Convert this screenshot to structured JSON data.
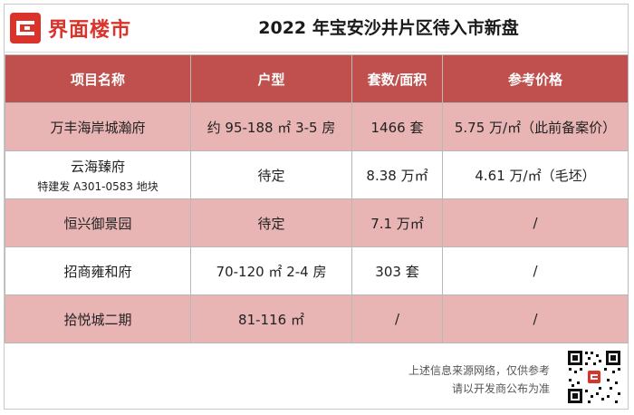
{
  "header": {
    "brand": "界面楼市",
    "title": "2022 年宝安沙井片区待入市新盘"
  },
  "table": {
    "columns": [
      "项目名称",
      "户型",
      "套数/面积",
      "参考价格"
    ],
    "rows": [
      {
        "name": "万丰海岸城瀚府",
        "name_sub": "",
        "unit": "约 95-188 ㎡ 3-5 房",
        "count": "1466 套",
        "price": "5.75 万/㎡（此前备案价）"
      },
      {
        "name": "云海臻府",
        "name_sub": "特建发 A301-0583 地块",
        "unit": "待定",
        "count": "8.38 万㎡",
        "price": "4.61 万/㎡（毛坯）"
      },
      {
        "name": "恒兴御景园",
        "name_sub": "",
        "unit": "待定",
        "count": "7.1 万㎡",
        "price": "/"
      },
      {
        "name": "招商雍和府",
        "name_sub": "",
        "unit": "70-120 ㎡ 2-4 房",
        "count": "303 套",
        "price": "/"
      },
      {
        "name": "拾悦城二期",
        "name_sub": "",
        "unit": "81-116 ㎡",
        "count": "/",
        "price": "/"
      }
    ]
  },
  "footer": {
    "note_line1": "上述信息来源网络，仅供参考",
    "note_line2": "请以开发商公布为准"
  },
  "colors": {
    "brand": "#d9332b",
    "header_row": "#c0504d",
    "pink_row": "#e8b4b4"
  }
}
